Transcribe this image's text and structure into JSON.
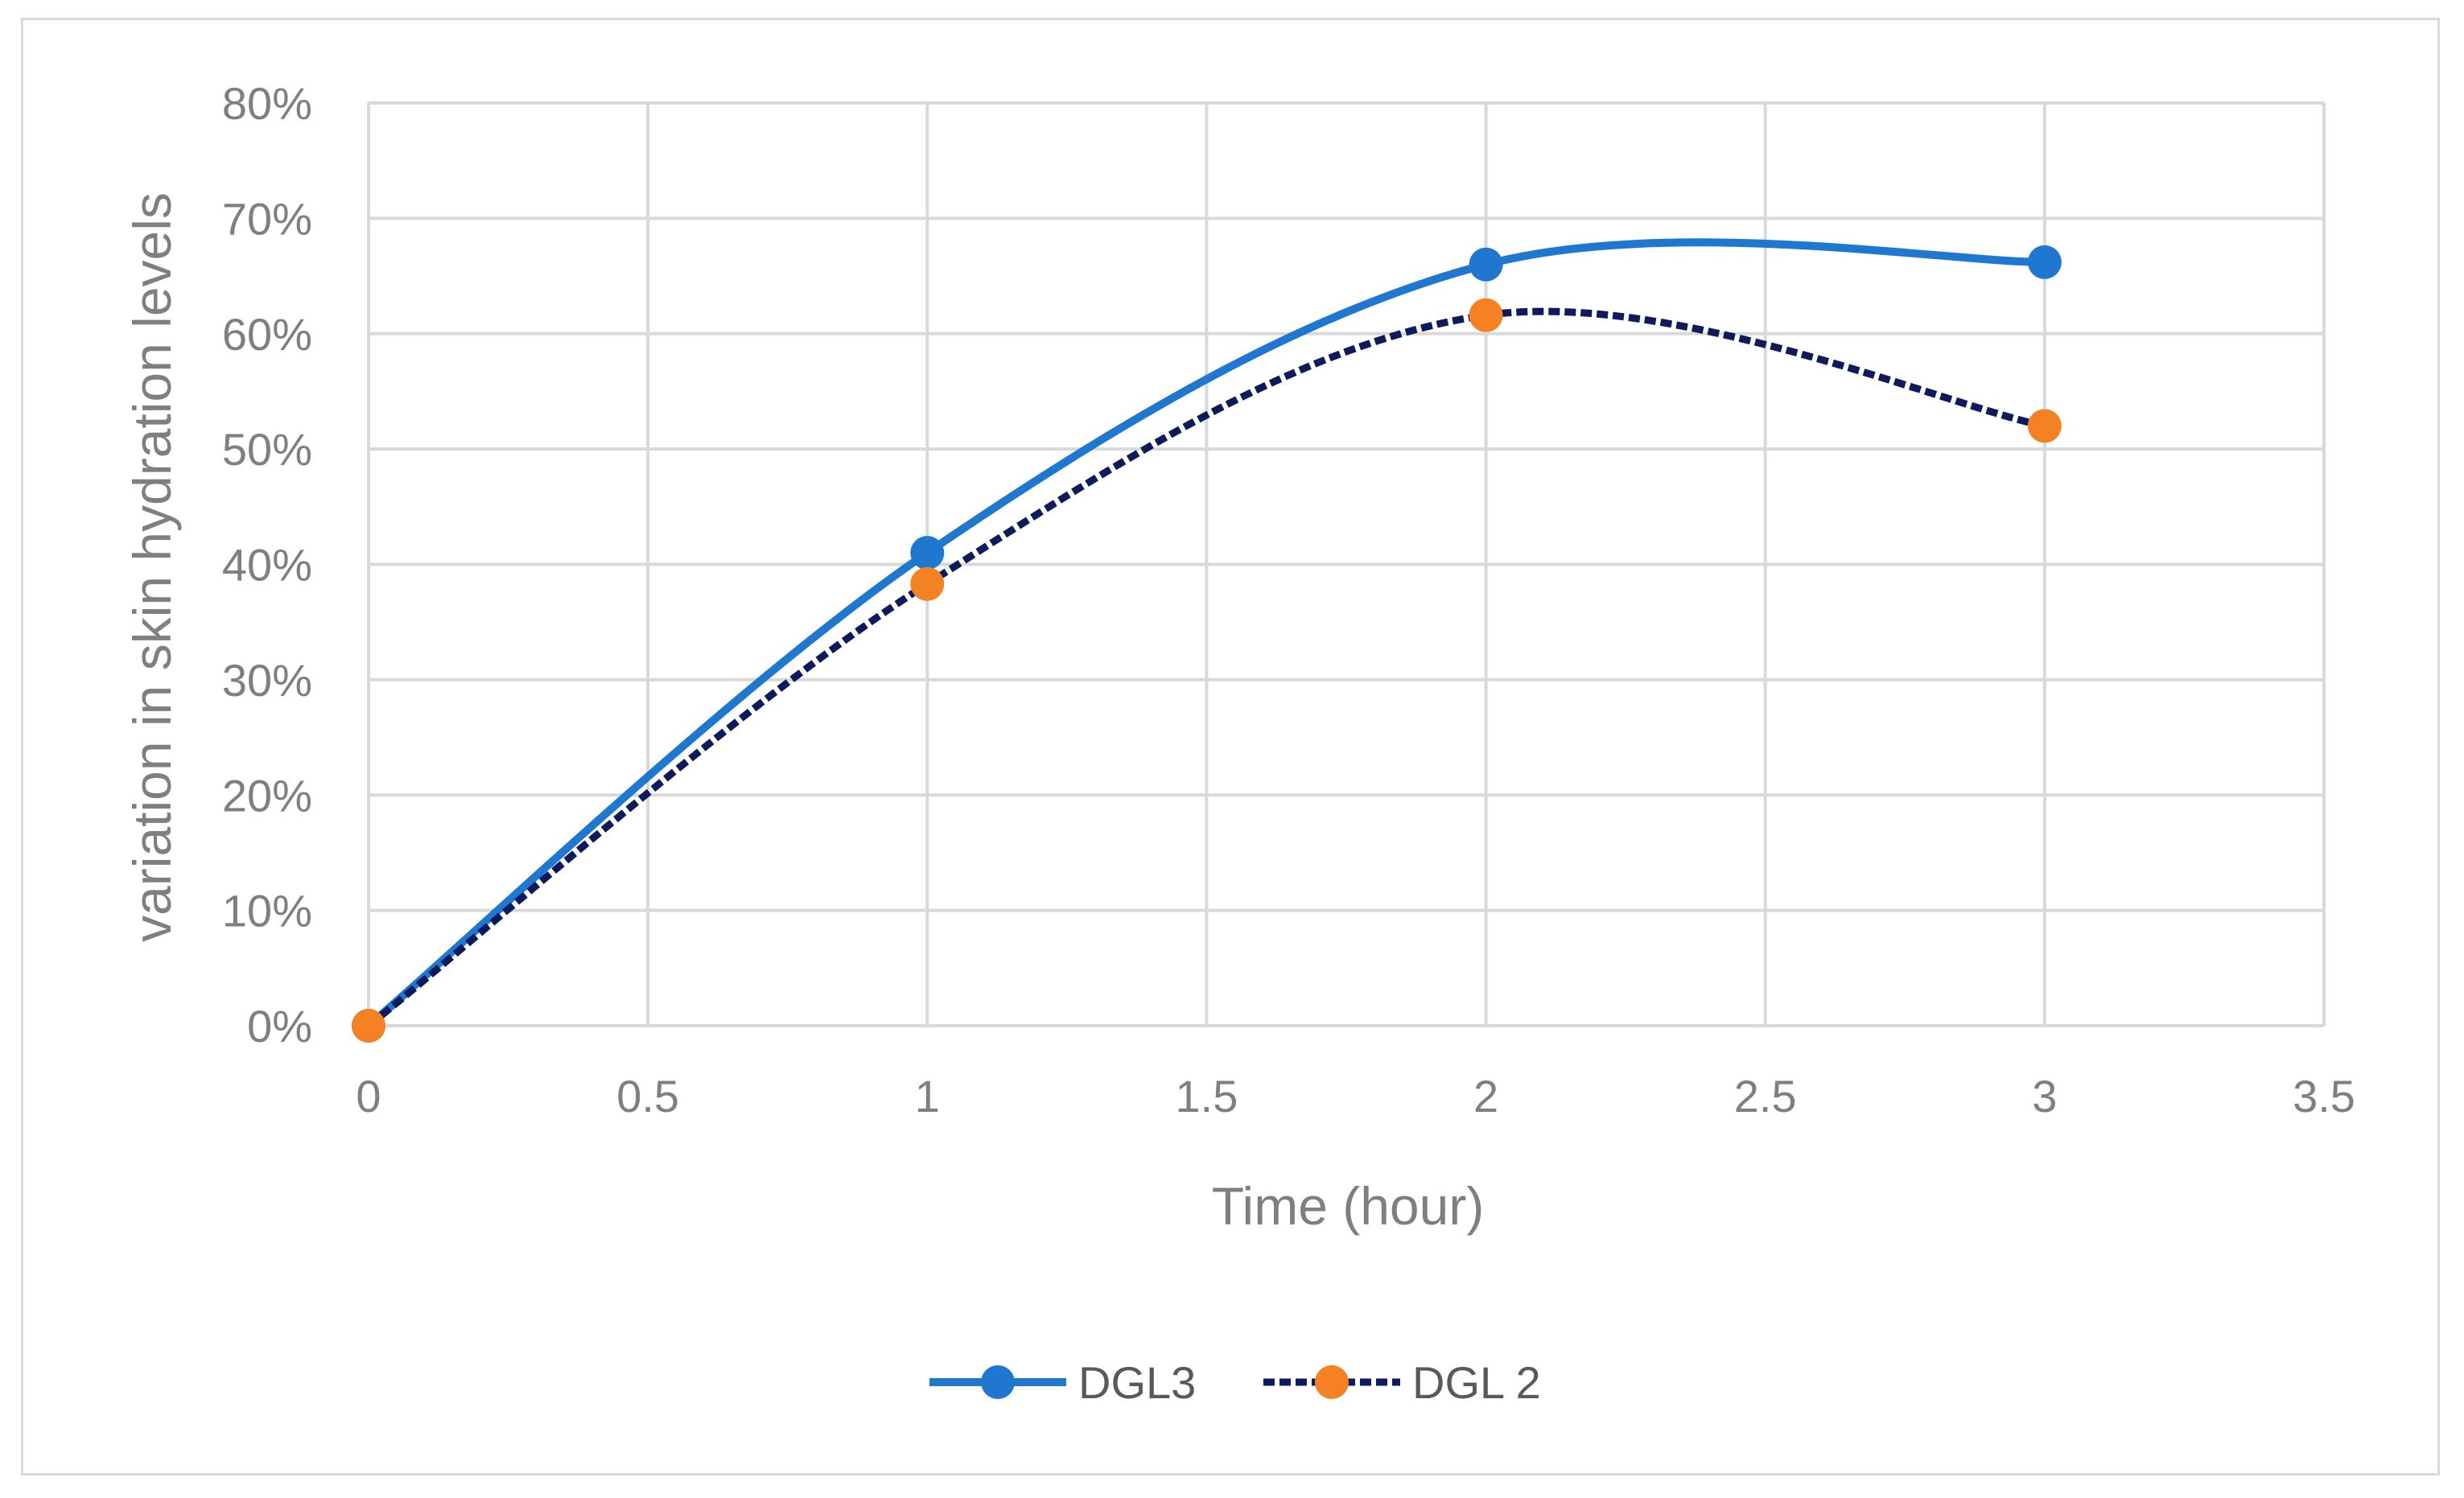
{
  "chart_data": {
    "type": "line",
    "xlabel": "Time (hour)",
    "ylabel": "variation in skin hydration levels",
    "xlim": [
      0,
      3.5
    ],
    "ylim": [
      0,
      0.8
    ],
    "x_ticks": [
      "0",
      "0.5",
      "1",
      "1.5",
      "2",
      "2.5",
      "3",
      "3.5"
    ],
    "y_ticks": [
      "0%",
      "10%",
      "20%",
      "30%",
      "40%",
      "50%",
      "60%",
      "70%",
      "80%"
    ],
    "grid": true,
    "smooth": true,
    "legend_position": "bottom",
    "series": [
      {
        "name": "DGL3",
        "x": [
          0,
          1,
          2,
          3
        ],
        "y": [
          0.0,
          0.41,
          0.66,
          0.662
        ],
        "line_color": "#1f77d0",
        "marker_color": "#1f77d0",
        "dashed": false
      },
      {
        "name": "DGL 2",
        "x": [
          0,
          1,
          2,
          3
        ],
        "y": [
          0.0,
          0.383,
          0.616,
          0.52
        ],
        "line_color": "#0d1a5c",
        "marker_color": "#f58125",
        "dashed": true
      }
    ]
  }
}
